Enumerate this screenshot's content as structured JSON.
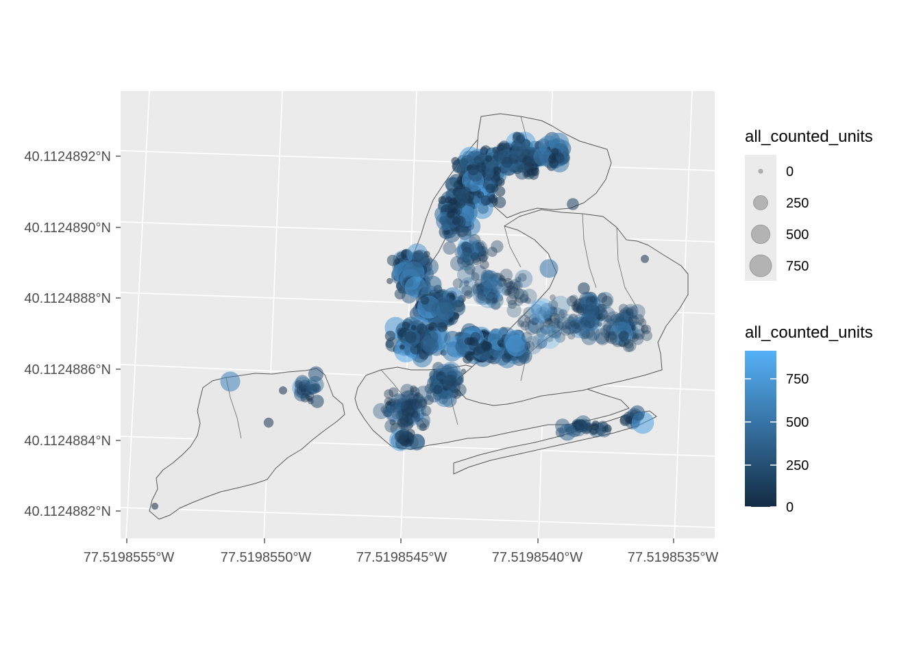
{
  "map": {
    "type": "point-map",
    "region_count": 5,
    "x_ticks": [
      "77.5198555°W",
      "77.5198550°W",
      "77.5198545°W",
      "77.5198540°W",
      "77.5198535°W"
    ],
    "y_ticks": [
      "40.1124892°N",
      "40.1124890°N",
      "40.1124888°N",
      "40.1124886°N",
      "40.1124884°N",
      "40.1124882°N"
    ],
    "grid": true,
    "panel_color": "#ebebeb",
    "land_color": "#e8e8e8",
    "border_color": "#555555"
  },
  "legend_size": {
    "title": "all_counted_units",
    "labels": [
      "0",
      "250",
      "500",
      "750"
    ],
    "values": [
      0,
      250,
      500,
      750
    ],
    "position": "right-top"
  },
  "legend_color": {
    "title": "all_counted_units",
    "labels": [
      "750",
      "500",
      "250",
      "0"
    ],
    "values": [
      750,
      500,
      250,
      0
    ],
    "range": [
      0,
      900
    ],
    "low_color": "#132b43",
    "high_color": "#56b1f7",
    "position": "right-bottom"
  },
  "units_scale": {
    "min": 0,
    "max": 900
  }
}
